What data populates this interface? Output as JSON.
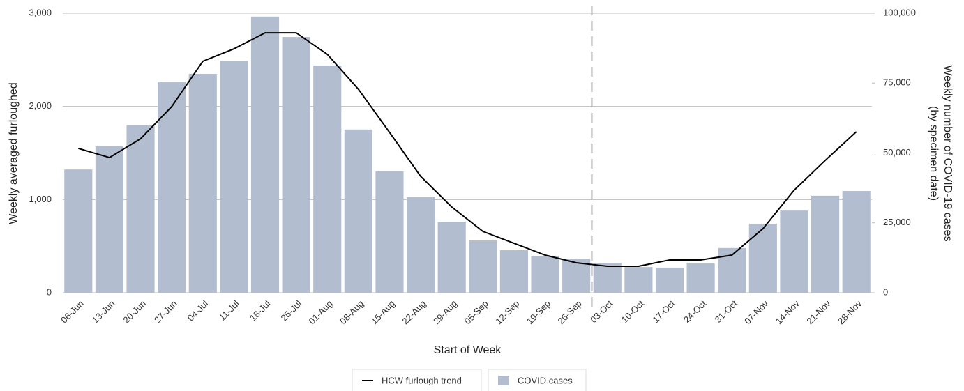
{
  "chart_data": {
    "type": "combo",
    "xlabel": "Start of Week",
    "ylabel": "Weekly averaged furloughed",
    "y2label": [
      "Weekly number of COVID-19 cases",
      "(by specimen date)"
    ],
    "categories": [
      "06-Jun",
      "13-Jun",
      "20-Jun",
      "27-Jun",
      "04-Jul",
      "11-Jul",
      "18-Jul",
      "25-Jul",
      "01-Aug",
      "08-Aug",
      "15-Aug",
      "22-Aug",
      "29-Aug",
      "05-Sep",
      "12-Sep",
      "19-Sep",
      "26-Sep",
      "03-Oct",
      "10-Oct",
      "17-Oct",
      "24-Oct",
      "31-Oct",
      "07-Nov",
      "14-Nov",
      "21-Nov",
      "28-Nov"
    ],
    "series": [
      {
        "name": "HCW furlough trend",
        "type": "line",
        "color": "#000000",
        "values": [
          1549,
          1451,
          1653,
          1998,
          2484,
          2618,
          2790,
          2790,
          2559,
          2184,
          1721,
          1249,
          920,
          658,
          531,
          404,
          322,
          284,
          284,
          352,
          352,
          404,
          688,
          1100,
          1421,
          1728
        ]
      },
      {
        "name": "COVID cases",
        "type": "bar",
        "axis": "y2",
        "color": "#b3bdd0",
        "values": [
          44100,
          52400,
          60100,
          75300,
          78300,
          83000,
          98800,
          91500,
          81300,
          58400,
          43400,
          34200,
          25400,
          18700,
          15200,
          13200,
          12200,
          10700,
          9200,
          9000,
          10500,
          16000,
          24700,
          29400,
          34700,
          36400
        ]
      }
    ],
    "ylim": [
      0,
      3000
    ],
    "yticks": [
      0,
      {
        "value": 1000,
        "label": "1,000"
      },
      {
        "value": 2000,
        "label": "2,000"
      },
      {
        "value": 3000,
        "label": "3,000"
      }
    ],
    "y2lim": [
      0,
      100000
    ],
    "y2ticks": [
      0,
      {
        "value": 25000,
        "label": "25,000"
      },
      {
        "value": 50000,
        "label": "50,000"
      },
      {
        "value": 75000,
        "label": "75,000"
      },
      {
        "value": 100000,
        "label": "100,000"
      }
    ],
    "grid": true,
    "legend": "bottom"
  }
}
